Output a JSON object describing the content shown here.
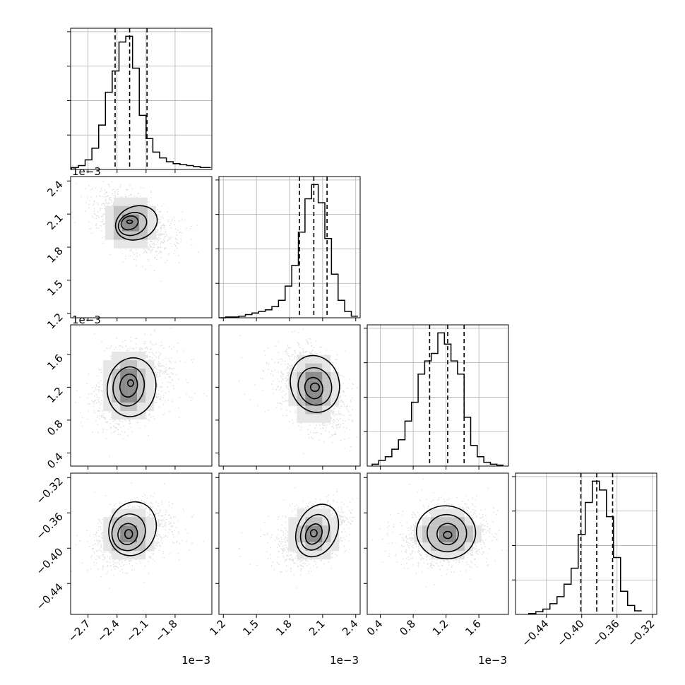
{
  "chart_data": {
    "type": "corner",
    "parameters": [
      {
        "label": "",
        "range": [
          -2.88,
          -1.42
        ],
        "ticks": [
          -2.7,
          -2.4,
          -2.1,
          -1.8
        ],
        "tick_labels": [
          "−2.7",
          "−2.4",
          "−2.1",
          "−1.8"
        ],
        "offset_text": "1e−3",
        "quantiles": [
          -2.42,
          -2.27,
          -2.09
        ],
        "peak": -2.27,
        "hist_bins": {
          "edges": [
            -2.87,
            -2.8,
            -2.73,
            -2.66,
            -2.59,
            -2.52,
            -2.45,
            -2.38,
            -2.31,
            -2.24,
            -2.17,
            -2.1,
            -2.03,
            -1.96,
            -1.89,
            -1.82,
            -1.75,
            -1.68,
            -1.61,
            -1.54,
            -1.47,
            -1.43
          ],
          "counts": [
            2,
            4,
            10,
            22,
            46,
            80,
            102,
            132,
            138,
            105,
            56,
            32,
            18,
            12,
            8,
            6,
            5,
            4,
            3,
            2,
            2
          ]
        }
      },
      {
        "label": "",
        "range": [
          1.16,
          2.44
        ],
        "ticks": [
          1.2,
          1.5,
          1.8,
          2.1,
          2.4
        ],
        "tick_labels": [
          "1.2",
          "1.5",
          "1.8",
          "2.1",
          "2.4"
        ],
        "offset_text": "1e−3",
        "quantiles": [
          1.89,
          2.02,
          2.14
        ],
        "peak": 2.03,
        "hist_bins": {
          "edges": [
            1.16,
            1.22,
            1.28,
            1.34,
            1.4,
            1.46,
            1.52,
            1.58,
            1.64,
            1.7,
            1.76,
            1.82,
            1.88,
            1.94,
            2.0,
            2.06,
            2.12,
            2.18,
            2.24,
            2.3,
            2.36,
            2.42
          ],
          "counts": [
            0,
            1,
            1,
            2,
            4,
            6,
            8,
            10,
            14,
            22,
            40,
            66,
            108,
            150,
            168,
            145,
            100,
            55,
            22,
            8,
            2
          ]
        }
      },
      {
        "label": "",
        "range": [
          0.24,
          1.96
        ],
        "ticks": [
          0.4,
          0.8,
          1.2,
          1.6
        ],
        "tick_labels": [
          "0.4",
          "0.8",
          "1.2",
          "1.6"
        ],
        "offset_text": "1e−3",
        "quantiles": [
          1.0,
          1.22,
          1.42
        ],
        "peak": 1.2,
        "hist_bins": {
          "edges": [
            0.3,
            0.38,
            0.46,
            0.54,
            0.62,
            0.7,
            0.78,
            0.86,
            0.94,
            1.02,
            1.1,
            1.18,
            1.26,
            1.34,
            1.42,
            1.5,
            1.58,
            1.66,
            1.74,
            1.82,
            1.9
          ],
          "counts": [
            2,
            6,
            10,
            18,
            28,
            48,
            68,
            98,
            112,
            120,
            142,
            130,
            112,
            98,
            52,
            22,
            10,
            4,
            2,
            1
          ]
        }
      },
      {
        "label": "",
        "range": [
          -0.475,
          -0.315
        ],
        "ticks": [
          -0.44,
          -0.4,
          -0.36,
          -0.32
        ],
        "tick_labels": [
          "−0.44",
          "−0.40",
          "−0.36",
          "−0.32"
        ],
        "offset_text": "",
        "quantiles": [
          -0.401,
          -0.383,
          -0.365
        ],
        "peak": -0.383,
        "hist_bins": {
          "edges": [
            -0.46,
            -0.452,
            -0.444,
            -0.436,
            -0.428,
            -0.42,
            -0.412,
            -0.404,
            -0.396,
            -0.388,
            -0.38,
            -0.372,
            -0.364,
            -0.356,
            -0.348,
            -0.34,
            -0.332
          ],
          "counts": [
            1,
            3,
            6,
            12,
            20,
            34,
            52,
            90,
            126,
            150,
            140,
            110,
            64,
            26,
            10,
            4
          ]
        }
      }
    ],
    "pairs": [
      {
        "x": 0,
        "y": 1,
        "center": [
          -2.26,
          2.02
        ],
        "spread": [
          0.18,
          0.14
        ],
        "corr": -0.5,
        "contours": [
          [
            -2.2,
            2.02,
            0.22,
            0.15,
            -20
          ],
          [
            -2.24,
            2.01,
            0.15,
            0.1,
            -20
          ],
          [
            -2.27,
            2.02,
            0.09,
            0.06,
            -20
          ],
          [
            -2.27,
            2.03,
            0.03,
            0.015,
            0
          ]
        ]
      },
      {
        "x": 0,
        "y": 2,
        "center": [
          -2.28,
          1.22
        ],
        "spread": [
          0.18,
          0.24
        ],
        "corr": 0.35,
        "contours": [
          [
            -2.25,
            1.2,
            0.25,
            0.36,
            10
          ],
          [
            -2.28,
            1.21,
            0.16,
            0.24,
            10
          ],
          [
            -2.28,
            1.22,
            0.09,
            0.14,
            10
          ],
          [
            -2.26,
            1.25,
            0.03,
            0.04,
            0
          ]
        ]
      },
      {
        "x": 0,
        "y": 3,
        "center": [
          -2.28,
          -0.384
        ],
        "spread": [
          0.18,
          0.017
        ],
        "corr": 0.3,
        "contours": [
          [
            -2.24,
            -0.378,
            0.24,
            0.031,
            20
          ],
          [
            -2.28,
            -0.382,
            0.17,
            0.021,
            20
          ],
          [
            -2.29,
            -0.384,
            0.1,
            0.012,
            20
          ],
          [
            -2.28,
            -0.384,
            0.04,
            0.005,
            0
          ]
        ]
      },
      {
        "x": 1,
        "y": 2,
        "center": [
          2.02,
          1.18
        ],
        "spread": [
          0.14,
          0.25
        ],
        "corr": -0.4,
        "contours": [
          [
            2.03,
            1.24,
            0.22,
            0.35,
            -15
          ],
          [
            2.03,
            1.21,
            0.15,
            0.23,
            -15
          ],
          [
            2.02,
            1.19,
            0.08,
            0.13,
            -15
          ],
          [
            2.03,
            1.2,
            0.04,
            0.05,
            0
          ]
        ]
      },
      {
        "x": 1,
        "y": 3,
        "center": [
          2.02,
          -0.384
        ],
        "spread": [
          0.14,
          0.017
        ],
        "corr": 0.45,
        "contours": [
          [
            2.05,
            -0.38,
            0.18,
            0.031,
            25
          ],
          [
            2.03,
            -0.382,
            0.12,
            0.021,
            25
          ],
          [
            2.02,
            -0.384,
            0.07,
            0.012,
            25
          ],
          [
            2.02,
            -0.383,
            0.03,
            0.004,
            0
          ]
        ]
      },
      {
        "x": 2,
        "y": 3,
        "center": [
          1.22,
          -0.384
        ],
        "spread": [
          0.24,
          0.017
        ],
        "corr": 0.1,
        "contours": [
          [
            1.2,
            -0.382,
            0.36,
            0.03,
            5
          ],
          [
            1.21,
            -0.383,
            0.24,
            0.021,
            5
          ],
          [
            1.22,
            -0.384,
            0.13,
            0.012,
            5
          ],
          [
            1.22,
            -0.385,
            0.05,
            0.004,
            0
          ]
        ]
      }
    ],
    "hist_ticks": 5,
    "grid": true
  }
}
